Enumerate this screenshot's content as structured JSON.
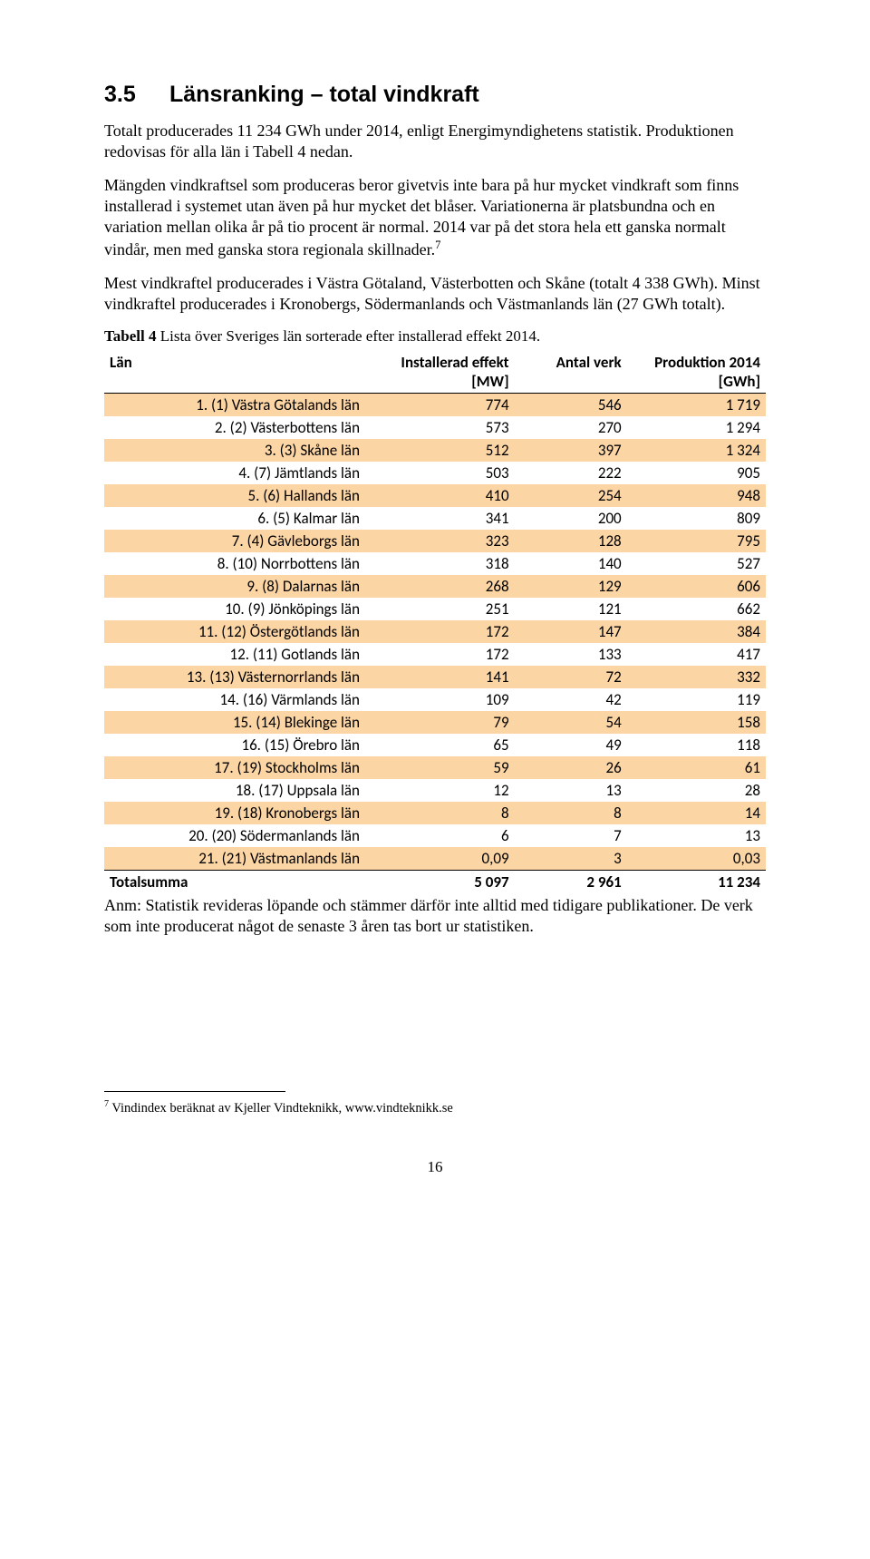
{
  "section": {
    "number": "3.5",
    "title": "Länsranking – total vindkraft"
  },
  "paragraphs": {
    "p1": "Totalt producerades 11 234 GWh under 2014, enligt Energimyndighetens statistik. Produktionen redovisas för alla län i Tabell 4 nedan.",
    "p2": "Mängden vindkraftsel som produceras beror givetvis inte bara på hur mycket vindkraft som finns installerad i systemet utan även på hur mycket det blåser. Variationerna är platsbundna och en variation mellan olika år på tio procent är normal. 2014 var på det stora hela ett ganska normalt vindår, men med ganska stora regionala skillnader.",
    "p2_sup": "7",
    "p3": "Mest vindkraftel producerades i Västra Götaland, Västerbotten och Skåne (totalt 4 338 GWh). Minst vindkraftel producerades i Kronobergs, Södermanlands och Västmanlands län (27 GWh totalt)."
  },
  "table_caption_bold": "Tabell 4",
  "table_caption_rest": " Lista över Sveriges län sorterade efter installerad effekt 2014.",
  "columns": {
    "c1": "Län",
    "c2a": "Installerad effekt",
    "c2b": "[MW]",
    "c3": "Antal verk",
    "c4a": "Produktion 2014",
    "c4b": "[GWh]"
  },
  "rows": [
    {
      "label": "1. (1) Västra Götalands län",
      "mw": "774",
      "verk": "546",
      "gwh": "1 719"
    },
    {
      "label": "2. (2) Västerbottens län",
      "mw": "573",
      "verk": "270",
      "gwh": "1 294"
    },
    {
      "label": "3. (3) Skåne län",
      "mw": "512",
      "verk": "397",
      "gwh": "1 324"
    },
    {
      "label": "4. (7) Jämtlands län",
      "mw": "503",
      "verk": "222",
      "gwh": "905"
    },
    {
      "label": "5. (6) Hallands län",
      "mw": "410",
      "verk": "254",
      "gwh": "948"
    },
    {
      "label": "6. (5) Kalmar län",
      "mw": "341",
      "verk": "200",
      "gwh": "809"
    },
    {
      "label": "7. (4) Gävleborgs län",
      "mw": "323",
      "verk": "128",
      "gwh": "795"
    },
    {
      "label": "8. (10) Norrbottens län",
      "mw": "318",
      "verk": "140",
      "gwh": "527"
    },
    {
      "label": "9. (8) Dalarnas län",
      "mw": "268",
      "verk": "129",
      "gwh": "606"
    },
    {
      "label": "10. (9) Jönköpings län",
      "mw": "251",
      "verk": "121",
      "gwh": "662"
    },
    {
      "label": "11. (12) Östergötlands län",
      "mw": "172",
      "verk": "147",
      "gwh": "384"
    },
    {
      "label": "12. (11) Gotlands län",
      "mw": "172",
      "verk": "133",
      "gwh": "417"
    },
    {
      "label": "13. (13) Västernorrlands län",
      "mw": "141",
      "verk": "72",
      "gwh": "332"
    },
    {
      "label": "14. (16) Värmlands län",
      "mw": "109",
      "verk": "42",
      "gwh": "119"
    },
    {
      "label": "15. (14) Blekinge län",
      "mw": "79",
      "verk": "54",
      "gwh": "158"
    },
    {
      "label": "16. (15) Örebro län",
      "mw": "65",
      "verk": "49",
      "gwh": "118"
    },
    {
      "label": "17. (19) Stockholms län",
      "mw": "59",
      "verk": "26",
      "gwh": "61"
    },
    {
      "label": "18. (17) Uppsala län",
      "mw": "12",
      "verk": "13",
      "gwh": "28"
    },
    {
      "label": "19. (18) Kronobergs län",
      "mw": "8",
      "verk": "8",
      "gwh": "14"
    },
    {
      "label": "20. (20) Södermanlands län",
      "mw": "6",
      "verk": "7",
      "gwh": "13"
    },
    {
      "label": "21. (21) Västmanlands län",
      "mw": "0,09",
      "verk": "3",
      "gwh": "0,03"
    }
  ],
  "total": {
    "label": "Totalsumma",
    "mw": "5 097",
    "verk": "2 961",
    "gwh": "11 234"
  },
  "table_note": "Anm: Statistik revideras löpande och stämmer därför inte alltid med tidigare publikationer. De verk som inte producerat något de senaste 3 åren tas bort ur statistiken.",
  "footnote_num": "7",
  "footnote_text": " Vindindex beräknat av Kjeller Vindteknikk, www.vindteknikk.se",
  "page_number": "16",
  "style": {
    "odd_row_color": "#fcd5a5",
    "background": "#ffffff",
    "text_color": "#000000",
    "col_widths_pct": [
      40,
      22,
      17,
      21
    ]
  }
}
